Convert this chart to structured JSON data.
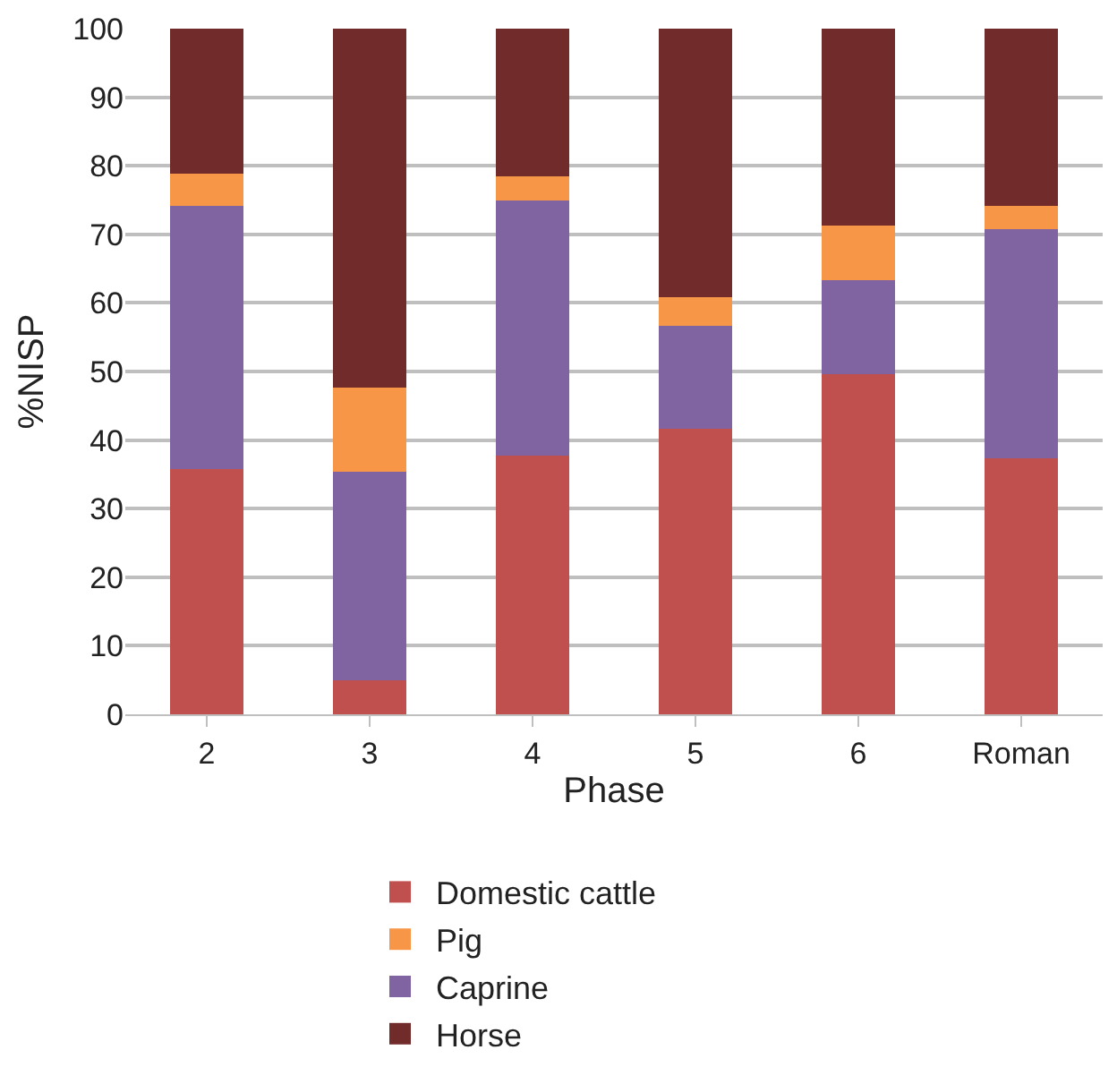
{
  "chart_data": {
    "type": "bar",
    "stacked": true,
    "xlabel": "Phase",
    "ylabel": "%NISP",
    "categories": [
      "2",
      "3",
      "4",
      "5",
      "6",
      "Roman"
    ],
    "series": [
      {
        "name": "Domestic cattle",
        "color": "#c0504d",
        "values": [
          35.8,
          4.9,
          37.7,
          41.6,
          49.6,
          37.3
        ]
      },
      {
        "name": "Caprine",
        "color": "#8064a2",
        "values": [
          38.3,
          30.5,
          37.3,
          15.0,
          13.7,
          33.4
        ]
      },
      {
        "name": "Pig",
        "color": "#f79646",
        "values": [
          4.7,
          12.3,
          3.4,
          4.3,
          8.0,
          3.4
        ]
      },
      {
        "name": "Horse",
        "color": "#722b2b",
        "values": [
          21.2,
          52.3,
          21.6,
          39.1,
          28.7,
          25.9
        ]
      }
    ],
    "ylim": [
      0,
      100
    ],
    "yticks": [
      0,
      10,
      20,
      30,
      40,
      50,
      60,
      70,
      80,
      90,
      100
    ],
    "grid": "y",
    "legend": "bottom"
  }
}
